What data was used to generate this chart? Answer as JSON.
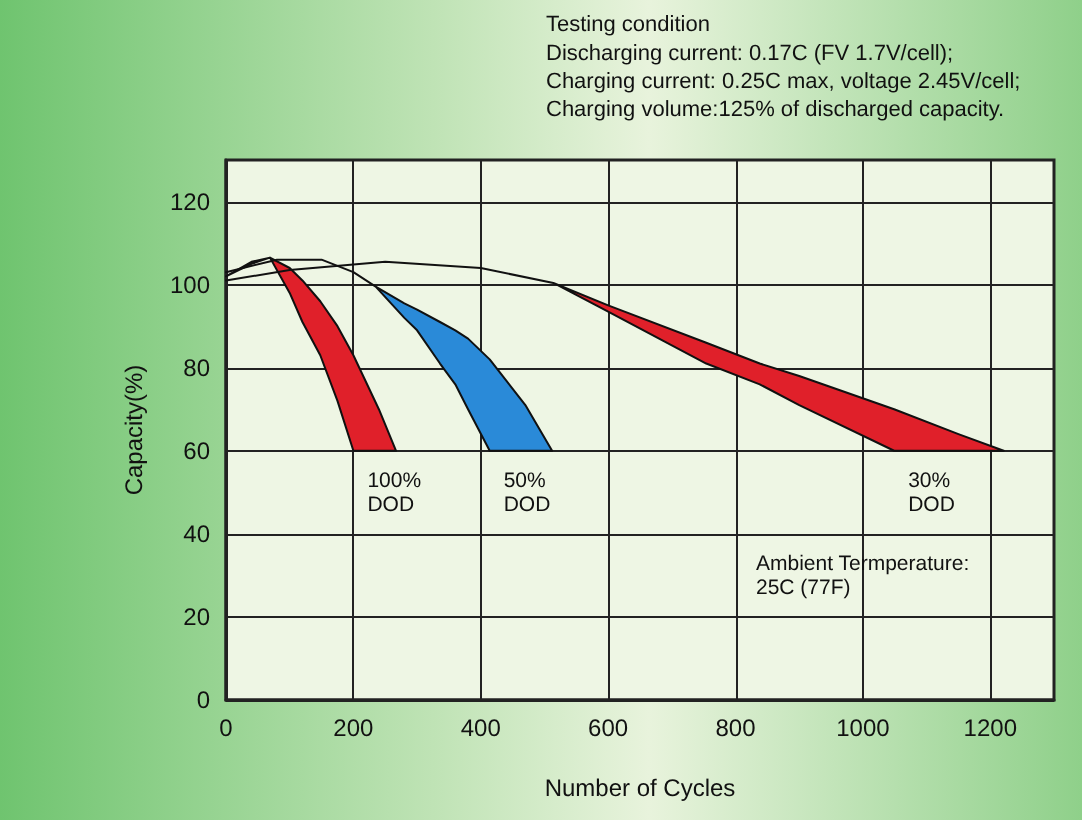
{
  "chart_data": {
    "type": "area",
    "title": "Testing condition",
    "subtitle": "Discharging current: 0.17C (FV 1.7V/cell);\nCharging current: 0.25C max, voltage 2.45V/cell;\nCharging volume:125% of discharged capacity.",
    "xlabel": "Number of Cycles",
    "ylabel": "Capacity(%)",
    "series": [
      {
        "color": "#e0202a",
        "x": [
          0,
          40,
          69,
          100,
          120,
          148,
          175,
          200,
          240,
          267,
          200,
          175,
          148,
          120,
          100,
          69,
          40
        ],
        "values": [
          102,
          105.5,
          106.5,
          104,
          101,
          96,
          90,
          83,
          70,
          60,
          60,
          72,
          83,
          91,
          98,
          106.5,
          105
        ]
      },
      {
        "color": "#2a8ad8",
        "x": [
          0,
          80,
          150,
          200,
          235,
          280,
          300,
          336,
          360,
          380,
          414,
          470,
          512,
          414,
          380,
          360,
          336,
          300,
          280,
          235,
          200,
          150,
          80
        ],
        "values": [
          103,
          106,
          106,
          103,
          99.5,
          95.5,
          94,
          91,
          89,
          87,
          82,
          71,
          60,
          60,
          70,
          76,
          81,
          89,
          92,
          99.5,
          103,
          106,
          106
        ]
      },
      {
        "color": "#e0202a",
        "x": [
          0,
          100,
          250,
          400,
          514,
          600,
          754,
          838,
          900,
          1049,
          1150,
          1221,
          1049,
          900,
          838,
          754,
          600,
          514,
          400,
          250,
          100
        ],
        "values": [
          101,
          103.5,
          105.5,
          104,
          100.4,
          95,
          86,
          81,
          78,
          70,
          64,
          60,
          60,
          71,
          76,
          81,
          93.5,
          100.4,
          104,
          105.5,
          103.5
        ]
      }
    ],
    "annotations": [
      "100%\nDOD",
      "50%\nDOD",
      "30%\nDOD",
      "Ambient Termperature:\n25C (77F)"
    ],
    "xlim": [
      0,
      1300
    ],
    "xticks": [
      0,
      200,
      400,
      600,
      800,
      1000,
      1200
    ],
    "ylim": [
      0,
      130
    ],
    "yticks": [
      0,
      20,
      40,
      60,
      80,
      100,
      120
    ],
    "grid": true
  }
}
